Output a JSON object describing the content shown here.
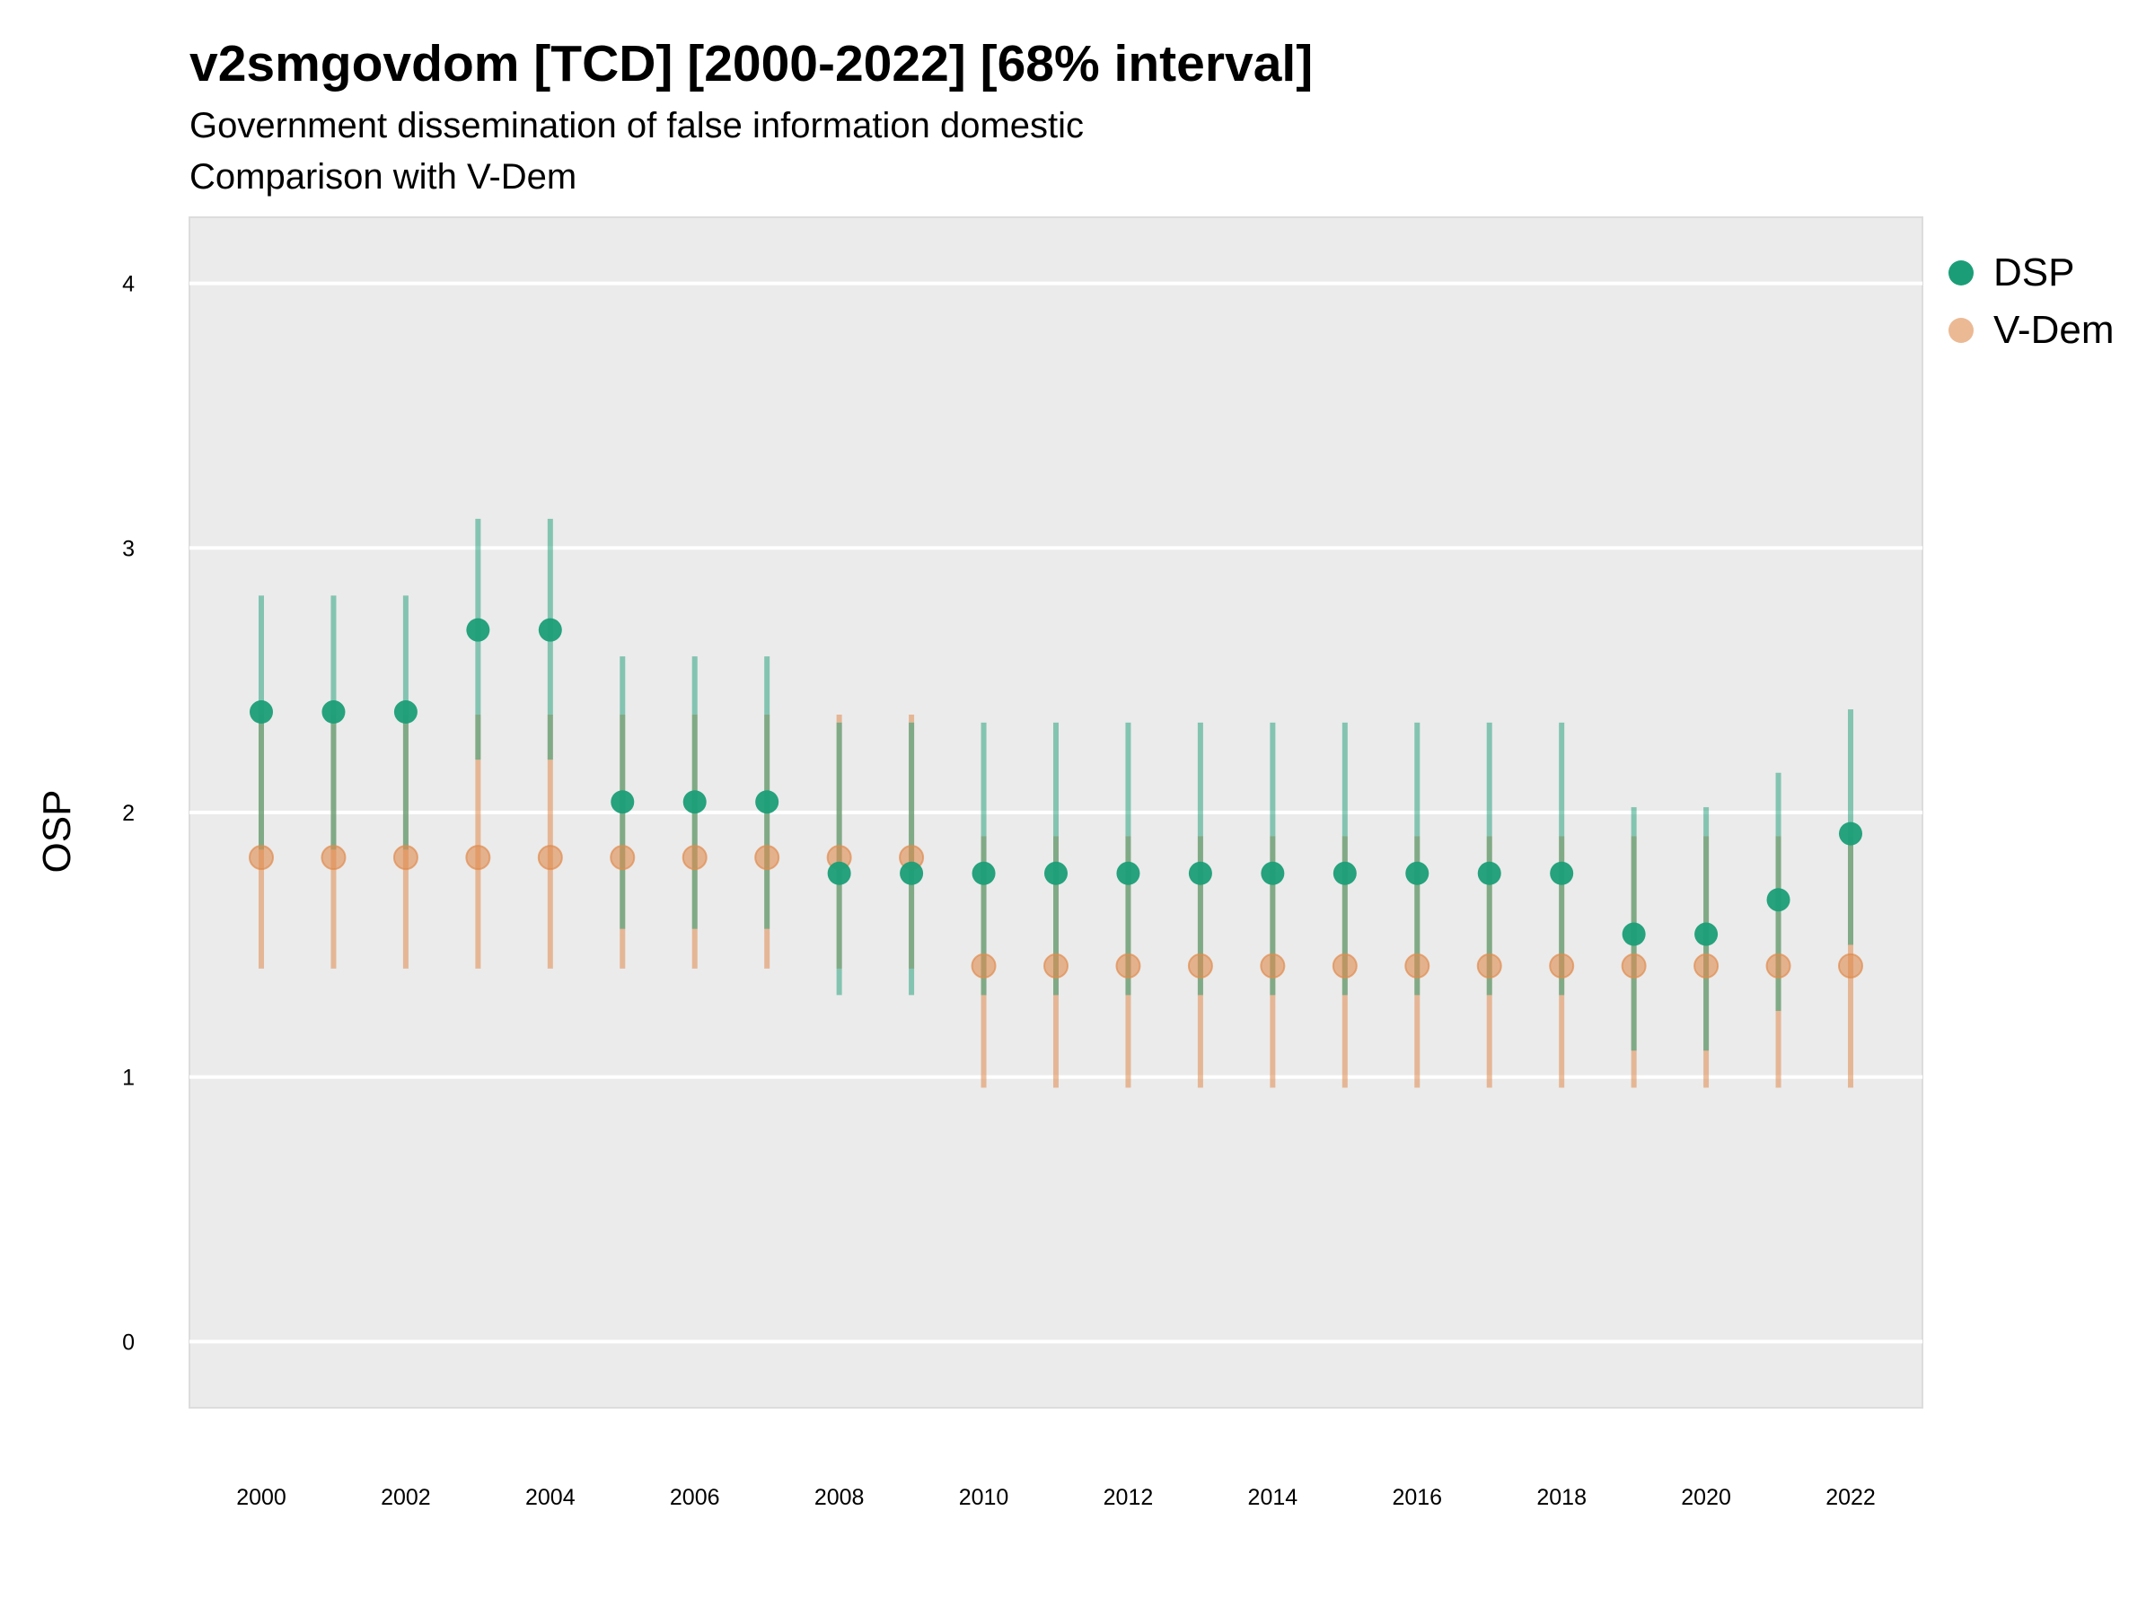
{
  "title": "v2smgovdom [TCD] [2000-2022] [68% interval]",
  "subtitle_line1": "Government dissemination of false information domestic",
  "subtitle_line2": "Comparison with V-Dem",
  "chart_data": {
    "type": "scatter",
    "ylabel": "OSP",
    "xlabel": "",
    "ylim": [
      -0.25,
      4.25
    ],
    "yticks": [
      0,
      1,
      2,
      3,
      4
    ],
    "xticks": [
      2000,
      2002,
      2004,
      2006,
      2008,
      2010,
      2012,
      2014,
      2016,
      2018,
      2020,
      2022
    ],
    "grid": true,
    "legend_position": "right",
    "x": [
      2000,
      2001,
      2002,
      2003,
      2004,
      2005,
      2006,
      2007,
      2008,
      2009,
      2010,
      2011,
      2012,
      2013,
      2014,
      2015,
      2016,
      2017,
      2018,
      2019,
      2020,
      2021,
      2022
    ],
    "series": [
      {
        "name": "DSP",
        "color": "#1b9e77",
        "values": [
          2.38,
          2.38,
          2.38,
          2.69,
          2.69,
          2.04,
          2.04,
          2.04,
          1.77,
          1.77,
          1.77,
          1.77,
          1.77,
          1.77,
          1.77,
          1.77,
          1.77,
          1.77,
          1.77,
          1.54,
          1.54,
          1.67,
          1.92
        ],
        "lower": [
          1.86,
          1.86,
          1.86,
          2.2,
          2.2,
          1.56,
          1.56,
          1.56,
          1.31,
          1.31,
          1.31,
          1.31,
          1.31,
          1.31,
          1.31,
          1.31,
          1.31,
          1.31,
          1.31,
          1.1,
          1.1,
          1.25,
          1.5
        ],
        "upper": [
          2.82,
          2.82,
          2.82,
          3.11,
          3.11,
          2.59,
          2.59,
          2.59,
          2.34,
          2.34,
          2.34,
          2.34,
          2.34,
          2.34,
          2.34,
          2.34,
          2.34,
          2.34,
          2.34,
          2.02,
          2.02,
          2.15,
          2.39
        ]
      },
      {
        "name": "V-Dem",
        "color": "#e08b4f",
        "values": [
          1.83,
          1.83,
          1.83,
          1.83,
          1.83,
          1.83,
          1.83,
          1.83,
          1.83,
          1.83,
          1.42,
          1.42,
          1.42,
          1.42,
          1.42,
          1.42,
          1.42,
          1.42,
          1.42,
          1.42,
          1.42,
          1.42,
          1.42
        ],
        "lower": [
          1.41,
          1.41,
          1.41,
          1.41,
          1.41,
          1.41,
          1.41,
          1.41,
          1.41,
          1.41,
          0.96,
          0.96,
          0.96,
          0.96,
          0.96,
          0.96,
          0.96,
          0.96,
          0.96,
          0.96,
          0.96,
          0.96,
          0.96
        ],
        "upper": [
          2.37,
          2.37,
          2.37,
          2.37,
          2.37,
          2.37,
          2.37,
          2.37,
          2.37,
          2.37,
          1.91,
          1.91,
          1.91,
          1.91,
          1.91,
          1.91,
          1.91,
          1.91,
          1.91,
          1.91,
          1.91,
          1.91,
          1.91
        ]
      }
    ]
  }
}
